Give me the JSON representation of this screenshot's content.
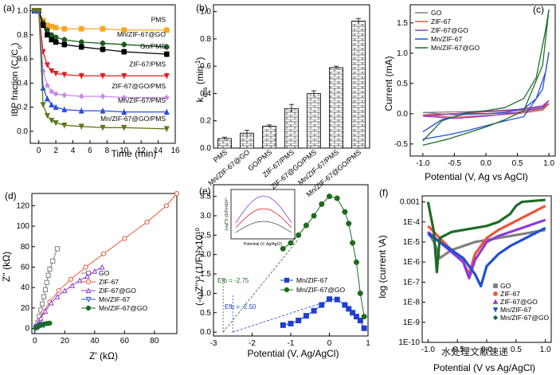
{
  "panels": {
    "a": {
      "letter": "(a)",
      "ylabel": "IBP fraction (C",
      "ylabel_sub1": "t",
      "ylabel_mid": "/C",
      "ylabel_sub2": "o",
      "ylabel_end": ")",
      "xlabel": "Time (min)"
    },
    "b": {
      "letter": "(b)",
      "ylabel": "k",
      "ylabel_sub": "obs",
      "ylabel_unit": " (min",
      "ylabel_sup": "-1",
      "ylabel_close": ")"
    },
    "c": {
      "letter": "(c)",
      "ylabel": "Current (mA)",
      "xlabel": "Potential (V, Ag vs AgCl)"
    },
    "d": {
      "letter": "(d)",
      "ylabel": "Z'' (kΩ)",
      "xlabel": "Z' (kΩ)"
    },
    "e": {
      "letter": "(e)",
      "ylabel": "(-ωZ'')² (1/F)²x10¹⁰",
      "xlabel": "Potential (V, Ag/AgCl)",
      "efb1": "Efb = -2.75",
      "efb2": "Efb = -2.50",
      "inset_xlabel": "Potential (V, Ag/AgCl)",
      "inset_ylabel": "(-ωZ'')² (1/F)²x10¹⁰"
    },
    "f": {
      "letter": "(f)",
      "ylabel": "log (current \\A)",
      "xlabel": "Potential (V vs Ag/AgCl)"
    }
  },
  "watermark": "水处理文献速递",
  "colors": {
    "PMS": "#f5a623",
    "MnZIF67GO": "#1a5e1a",
    "GO_PMS": "#000000",
    "ZIF67_PMS": "#e02020",
    "ZIF67GO_PMS": "#c888e6",
    "MnZIF67_PMS": "#2a4fe0",
    "MnZIF67GO_PMS": "#5c7a1a",
    "GO": "#808080",
    "ZIF67": "#e8573c",
    "ZIF67GO": "#8e3bd6",
    "MnZIF67": "#1f4fd8",
    "MnZIF67GOc": "#1e6b2a",
    "blue": "#1f3fd0",
    "green": "#1e6b1e"
  },
  "chart_data": [
    {
      "panel": "a",
      "type": "line",
      "xlabel": "Time (min)",
      "ylabel": "IBP fraction (Ct/Co)",
      "xlim": [
        -1,
        16
      ],
      "ylim": [
        -0.1,
        1.05
      ],
      "xticks": [
        0,
        2,
        4,
        6,
        8,
        10,
        12,
        14,
        16
      ],
      "yticks": [
        0.0,
        0.2,
        0.4,
        0.6,
        0.8,
        1.0
      ],
      "x": [
        -0.5,
        0,
        0.5,
        1,
        1.5,
        2,
        3,
        5,
        7.5,
        10,
        15
      ],
      "series": [
        {
          "name": "PMS",
          "values": [
            1.0,
            1.0,
            0.92,
            0.88,
            0.87,
            0.86,
            0.85,
            0.85,
            0.85,
            0.84,
            0.84
          ]
        },
        {
          "name": "Mn/ZIF-67@GO",
          "values": [
            1.0,
            1.0,
            0.9,
            0.84,
            0.8,
            0.78,
            0.76,
            0.74,
            0.73,
            0.72,
            0.7
          ]
        },
        {
          "name": "Go/PMS",
          "values": [
            1.0,
            1.0,
            0.88,
            0.8,
            0.76,
            0.74,
            0.72,
            0.7,
            0.68,
            0.66,
            0.64
          ]
        },
        {
          "name": "ZIF-67/PMS",
          "values": [
            1.0,
            1.0,
            0.66,
            0.55,
            0.5,
            0.48,
            0.47,
            0.46,
            0.46,
            0.46,
            0.46
          ]
        },
        {
          "name": "ZIF-67@GO/PMS",
          "values": [
            1.0,
            1.0,
            0.5,
            0.38,
            0.33,
            0.31,
            0.3,
            0.29,
            0.29,
            0.28,
            0.28
          ]
        },
        {
          "name": "Mn/ZIF-67/PMS",
          "values": [
            1.0,
            1.0,
            0.36,
            0.27,
            0.22,
            0.2,
            0.18,
            0.17,
            0.17,
            0.16,
            0.16
          ]
        },
        {
          "name": "Mn/ZIF-67@GO/PMS",
          "values": [
            1.0,
            1.0,
            0.22,
            0.13,
            0.09,
            0.07,
            0.05,
            0.04,
            0.03,
            0.03,
            0.02
          ]
        }
      ]
    },
    {
      "panel": "b",
      "type": "bar",
      "categories": [
        "PMS",
        "Mn/ZIF-67@GO",
        "GO/PMS",
        "ZIF-67/PMS",
        "ZIF-67@GO/PMS",
        "Mn/ZIF-67/PMS",
        "Mn/ZIF-67@GO/PMS"
      ],
      "values": [
        0.07,
        0.11,
        0.16,
        0.29,
        0.4,
        0.59,
        0.93
      ],
      "errors": [
        0.01,
        0.02,
        0.01,
        0.03,
        0.02,
        0.01,
        0.02
      ],
      "ylim": [
        0,
        1.05
      ],
      "yticks": [
        0.0,
        0.2,
        0.4,
        0.6,
        0.8,
        1.0
      ]
    },
    {
      "panel": "c",
      "type": "line",
      "xlabel": "Potential (V, Ag vs AgCl)",
      "ylabel": "Current (mA)",
      "xlim": [
        -1.2,
        1.1
      ],
      "ylim": [
        -0.7,
        1.8
      ],
      "xticks": [
        -1.0,
        -0.5,
        0.0,
        0.5,
        1.0
      ],
      "yticks": [
        -0.5,
        0.0,
        0.5,
        1.0,
        1.5
      ],
      "series": [
        {
          "name": "GO",
          "x": [
            -1.0,
            -0.5,
            0,
            0.5,
            0.9,
            1.0,
            0.9,
            0.5,
            0,
            -0.5,
            -1.0
          ],
          "values": [
            0.02,
            0.03,
            0.04,
            0.06,
            0.12,
            0.17,
            0.08,
            0.02,
            0.0,
            -0.02,
            0.02
          ]
        },
        {
          "name": "ZIF-67",
          "x": [
            -1.0,
            -0.5,
            0,
            0.5,
            0.9,
            1.0,
            0.9,
            0.5,
            0,
            -0.5,
            -1.0
          ],
          "values": [
            -0.02,
            0.0,
            0.03,
            0.05,
            0.1,
            0.16,
            0.06,
            0.0,
            -0.03,
            -0.06,
            -0.02
          ]
        },
        {
          "name": "ZIF-67@GO",
          "x": [
            -1.0,
            -0.5,
            0,
            0.5,
            0.9,
            1.0,
            0.9,
            0.5,
            0,
            -0.5,
            -1.0
          ],
          "values": [
            -0.04,
            0.0,
            0.04,
            0.07,
            0.13,
            0.22,
            0.1,
            0.02,
            -0.04,
            -0.08,
            -0.04
          ]
        },
        {
          "name": "Mn/ZIF-67",
          "x": [
            -1.0,
            -0.7,
            -0.3,
            0,
            0.3,
            0.6,
            0.8,
            0.95,
            1.0,
            0.9,
            0.6,
            0.3,
            0,
            -0.3,
            -0.6,
            -1.0
          ],
          "values": [
            -0.3,
            -0.1,
            0.0,
            0.0,
            0.02,
            0.08,
            0.25,
            0.7,
            1.02,
            0.4,
            -0.05,
            -0.12,
            -0.2,
            -0.28,
            -0.35,
            -0.42
          ]
        },
        {
          "name": "Mn/ZIF-67@GO",
          "x": [
            -1.0,
            -0.7,
            -0.3,
            0,
            0.3,
            0.6,
            0.8,
            0.95,
            1.0,
            0.9,
            0.6,
            0.3,
            0,
            -0.3,
            -0.6,
            -1.0
          ],
          "values": [
            -0.45,
            -0.12,
            0.02,
            0.05,
            0.1,
            0.25,
            0.6,
            1.4,
            1.72,
            0.8,
            0.05,
            -0.1,
            -0.22,
            -0.32,
            -0.42,
            -0.52
          ]
        }
      ]
    },
    {
      "panel": "d",
      "type": "scatter",
      "xlabel": "Z' (kΩ)",
      "ylabel": "Z'' (kΩ)",
      "xlim": [
        -2,
        95
      ],
      "ylim": [
        -5,
        132
      ],
      "xticks": [
        0,
        20,
        40,
        60,
        80
      ],
      "yticks": [
        0,
        20,
        40,
        60,
        80,
        100,
        120
      ],
      "series": [
        {
          "name": "GO",
          "x": [
            1,
            2,
            3,
            4,
            5,
            6,
            7,
            8,
            9,
            10,
            12,
            15
          ],
          "values": [
            2,
            6,
            12,
            18,
            24,
            31,
            38,
            45,
            52,
            58,
            66,
            78
          ]
        },
        {
          "name": "ZIF-67",
          "x": [
            1,
            3,
            6,
            10,
            16,
            24,
            34,
            46,
            60,
            75,
            88,
            95
          ],
          "values": [
            2,
            8,
            16,
            26,
            37,
            48,
            60,
            73,
            88,
            104,
            120,
            132
          ]
        },
        {
          "name": "ZIF-67@GO",
          "x": [
            1,
            2,
            4,
            7,
            11,
            15,
            20,
            25,
            30,
            35,
            40,
            45
          ],
          "values": [
            1,
            4,
            10,
            17,
            25,
            31,
            37,
            42,
            47,
            51,
            56,
            60
          ]
        },
        {
          "name": "Mn/ZIF-67",
          "x": [
            0.5,
            1,
            2,
            3,
            4,
            5,
            6
          ],
          "values": [
            0.5,
            1,
            2,
            3,
            4,
            3.5,
            3
          ]
        },
        {
          "name": "Mn/ZIF-67@GO",
          "x": [
            0.5,
            1,
            2,
            3,
            4,
            5,
            6,
            7,
            8,
            9,
            10
          ],
          "values": [
            0.3,
            0.8,
            1.5,
            2.5,
            3.2,
            3.8,
            4.2,
            4.6,
            4.8,
            5,
            5.2
          ]
        }
      ]
    },
    {
      "panel": "e",
      "type": "scatter",
      "xlabel": "Potential (V, Ag/AgCl)",
      "xlim": [
        -3.0,
        1.0
      ],
      "ylim": [
        -0.1,
        3.8
      ],
      "xticks": [
        -3,
        -2,
        -1,
        0,
        1
      ],
      "yticks": [
        0.0,
        0.5,
        1.0,
        1.5,
        2.0,
        2.5,
        3.0,
        3.5
      ],
      "series": [
        {
          "name": "Mn/ZIF-67",
          "x": [
            -1.2,
            -1.0,
            -0.8,
            -0.6,
            -0.4,
            -0.2,
            0.0,
            0.2,
            0.4,
            0.5,
            0.6,
            0.7,
            0.8,
            0.9
          ],
          "values": [
            0.18,
            0.22,
            0.3,
            0.42,
            0.55,
            0.7,
            0.85,
            0.84,
            0.7,
            0.6,
            0.5,
            0.4,
            0.3,
            0.1
          ]
        },
        {
          "name": "Mn/ZIF-67@GO",
          "x": [
            -1.2,
            -1.0,
            -0.8,
            -0.6,
            -0.4,
            -0.2,
            0.0,
            0.2,
            0.4,
            0.5,
            0.6,
            0.7,
            0.8,
            0.9
          ],
          "values": [
            2.15,
            2.3,
            2.5,
            2.75,
            3.0,
            3.3,
            3.5,
            3.45,
            3.1,
            2.8,
            2.3,
            1.8,
            1.0,
            0.4
          ]
        }
      ]
    },
    {
      "panel": "f",
      "type": "line",
      "xlabel": "Potential (V vs Ag/AgCl)",
      "ylabel": "log (current \\A)",
      "xlim": [
        -1.1,
        1.1
      ],
      "ylim": [
        -10,
        -2.7
      ],
      "xticks": [
        -1.0,
        -0.5,
        0.0,
        0.5,
        1.0
      ],
      "ytick_labels": [
        "0.001",
        "1E-4",
        "1E-5",
        "1E-6",
        "1E-7",
        "1E-8",
        "1E-9",
        "1E-10"
      ],
      "series": [
        {
          "name": "GO",
          "x": [
            -1.0,
            -0.9,
            -0.8,
            -0.6,
            -0.4,
            -0.2,
            0.0,
            0.2,
            0.4,
            0.6,
            0.8,
            1.0
          ],
          "values": [
            -4.5,
            -5.0,
            -5.8,
            -5.4,
            -5.2,
            -5.0,
            -4.9,
            -4.8,
            -4.7,
            -4.6,
            -4.5,
            -4.4
          ]
        },
        {
          "name": "ZIF-67",
          "x": [
            -1.0,
            -0.8,
            -0.6,
            -0.4,
            -0.3,
            -0.2,
            0.0,
            0.2,
            0.4,
            0.6,
            0.8,
            1.0
          ],
          "values": [
            -4.2,
            -4.8,
            -5.4,
            -6.0,
            -6.6,
            -5.6,
            -4.8,
            -4.4,
            -4.1,
            -3.8,
            -3.5,
            -3.2
          ]
        },
        {
          "name": "ZIF-67@GO",
          "x": [
            -1.0,
            -0.8,
            -0.6,
            -0.4,
            -0.3,
            -0.2,
            0.0,
            0.2,
            0.4,
            0.6,
            0.8,
            1.0
          ],
          "values": [
            -4.5,
            -5.0,
            -5.5,
            -6.0,
            -6.8,
            -5.9,
            -5.0,
            -4.7,
            -4.5,
            -4.3,
            -4.1,
            -3.9
          ]
        },
        {
          "name": "Mn/ZIF-67",
          "x": [
            -1.0,
            -0.8,
            -0.6,
            -0.4,
            -0.2,
            -0.1,
            0.0,
            0.2,
            0.4,
            0.6,
            0.8,
            1.0
          ],
          "values": [
            -4.6,
            -5.0,
            -5.4,
            -5.8,
            -6.6,
            -7.2,
            -6.2,
            -5.6,
            -5.2,
            -4.9,
            -4.6,
            -4.3
          ]
        },
        {
          "name": "Mn/ZIF-67@GO",
          "x": [
            -1.0,
            -0.9,
            -0.85,
            -0.8,
            -0.6,
            -0.4,
            -0.2,
            0.0,
            0.2,
            0.4,
            0.5,
            0.6,
            0.8,
            1.0
          ],
          "values": [
            -3.0,
            -4.5,
            -6.5,
            -4.8,
            -4.5,
            -4.4,
            -4.3,
            -4.2,
            -4.0,
            -3.6,
            -3.2,
            -3.0,
            -2.95,
            -2.9
          ]
        }
      ]
    }
  ]
}
